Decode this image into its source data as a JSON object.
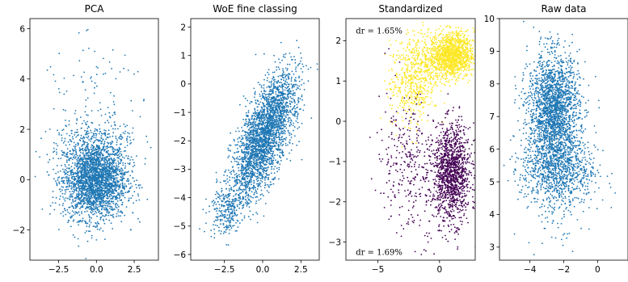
{
  "chart_data": [
    {
      "type": "scatter",
      "title": "PCA",
      "xlabel": "",
      "ylabel": "",
      "xlim": [
        -4.4,
        4.1
      ],
      "ylim": [
        -3.2,
        6.4
      ],
      "xticks": [
        -2.5,
        0.0,
        2.5
      ],
      "xtick_labels": [
        "−2.5",
        "0.0",
        "2.5"
      ],
      "yticks": [
        -2,
        0,
        2,
        4,
        6
      ],
      "ytick_labels": [
        "−2",
        "0",
        "2",
        "4",
        "6"
      ],
      "color": "#1f77b4",
      "clusters": [
        {
          "cx": -0.1,
          "cy": 0.0,
          "sx": 1.05,
          "sy": 0.78,
          "rho": 0.0,
          "n": 2600
        },
        {
          "cx": 0.0,
          "cy": 1.6,
          "sx": 1.4,
          "sy": 0.55,
          "rho": 0.0,
          "n": 220
        },
        {
          "cx": 0.1,
          "cy": 3.6,
          "sx": 1.9,
          "sy": 0.9,
          "rho": 0.0,
          "n": 70
        }
      ],
      "annotations": []
    },
    {
      "type": "scatter",
      "title": "WoE fine classing",
      "xlabel": "",
      "ylabel": "",
      "xlim": [
        -4.7,
        3.7
      ],
      "ylim": [
        -6.2,
        2.3
      ],
      "xticks": [
        -2.5,
        0.0,
        2.5
      ],
      "xtick_labels": [
        "−2.5",
        "0.0",
        "2.5"
      ],
      "yticks": [
        -6,
        -5,
        -4,
        -3,
        -2,
        -1,
        0,
        1,
        2
      ],
      "ytick_labels": [
        "−6",
        "−5",
        "−4",
        "−3",
        "−2",
        "−1",
        "0",
        "1",
        "2"
      ],
      "color": "#1f77b4",
      "clusters": [
        {
          "cx": 0.0,
          "cy": -2.0,
          "sx": 1.0,
          "sy": 1.05,
          "rho": 0.65,
          "n": 2400
        },
        {
          "cx": -2.4,
          "cy": -4.4,
          "sx": 0.55,
          "sy": 0.45,
          "rho": 0.2,
          "n": 260
        },
        {
          "cx": 1.2,
          "cy": -0.6,
          "sx": 0.7,
          "sy": 0.7,
          "rho": 0.3,
          "n": 300
        }
      ],
      "annotations": []
    },
    {
      "type": "scatter",
      "title": "Standardized",
      "xlabel": "",
      "ylabel": "",
      "xlim": [
        -7.6,
        2.9
      ],
      "ylim": [
        -3.45,
        2.55
      ],
      "xticks": [
        -5,
        0
      ],
      "xtick_labels": [
        "−5",
        "0"
      ],
      "yticks": [
        -3,
        -2,
        -1,
        0,
        1,
        2
      ],
      "ytick_labels": [
        "−3",
        "−2",
        "−1",
        "0",
        "1",
        "2"
      ],
      "colors": {
        "upper": "#fde725",
        "lower": "#440154"
      },
      "clusters": [
        {
          "cx": 1.0,
          "cy": 1.65,
          "sx": 0.9,
          "sy": 0.28,
          "rho": 0.0,
          "n": 1300,
          "group": "upper"
        },
        {
          "cx": -2.0,
          "cy": 1.1,
          "sx": 1.0,
          "sy": 0.55,
          "rho": 0.2,
          "n": 600,
          "group": "upper"
        },
        {
          "cx": 1.0,
          "cy": -1.3,
          "sx": 0.75,
          "sy": 0.6,
          "rho": 0.0,
          "n": 1300,
          "group": "lower"
        },
        {
          "cx": -2.5,
          "cy": -1.1,
          "sx": 1.3,
          "sy": 0.9,
          "rho": -0.2,
          "n": 320,
          "group": "lower"
        }
      ],
      "annotations": [
        {
          "text": "dr = 1.65%",
          "x": -6.8,
          "y": 2.25
        },
        {
          "text": "dr = 1.69%",
          "x": -6.8,
          "y": -3.25
        }
      ]
    },
    {
      "type": "scatter",
      "title": "Raw data",
      "xlabel": "",
      "ylabel": "",
      "xlim": [
        -5.8,
        1.8
      ],
      "ylim": [
        2.6,
        10.0
      ],
      "xticks": [
        -4,
        -2,
        0
      ],
      "xtick_labels": [
        "−4",
        "−2",
        "0"
      ],
      "yticks": [
        3,
        4,
        5,
        6,
        7,
        8,
        9,
        10
      ],
      "ytick_labels": [
        "3",
        "4",
        "5",
        "6",
        "7",
        "8",
        "9",
        "10"
      ],
      "color": "#1f77b4",
      "clusters": [
        {
          "cx": -2.6,
          "cy": 7.2,
          "sx": 0.75,
          "sy": 0.85,
          "rho": 0.0,
          "n": 2100
        },
        {
          "cx": -2.3,
          "cy": 5.4,
          "sx": 1.1,
          "sy": 0.55,
          "rho": 0.0,
          "n": 900
        },
        {
          "cx": -2.4,
          "cy": 4.2,
          "sx": 0.9,
          "sy": 0.6,
          "rho": 0.0,
          "n": 90
        }
      ],
      "annotations": []
    }
  ]
}
